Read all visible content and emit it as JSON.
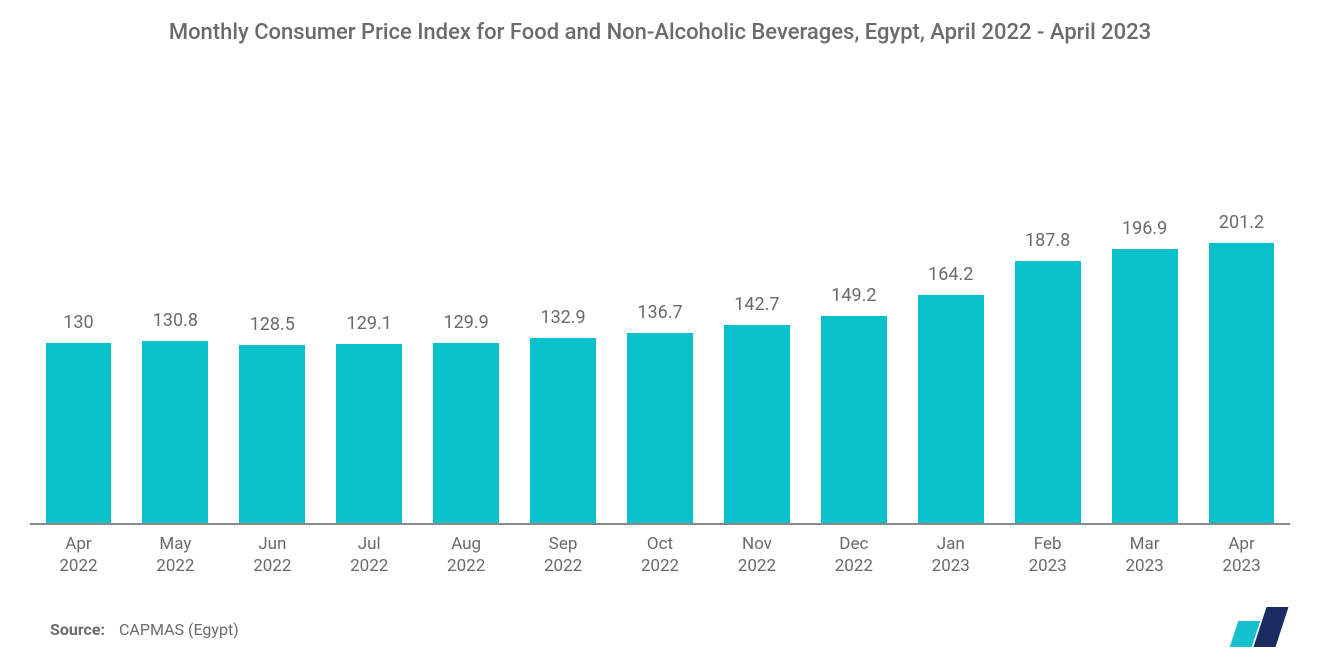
{
  "chart": {
    "type": "bar",
    "title": "Monthly Consumer Price Index for Food and Non-Alcoholic Beverages, Egypt, April 2022 - April 2023",
    "title_fontsize": 22,
    "title_color": "#6b6b6b",
    "categories": [
      "Apr\n2022",
      "May\n2022",
      "Jun\n2022",
      "Jul\n2022",
      "Aug\n2022",
      "Sep\n2022",
      "Oct\n2022",
      "Nov\n2022",
      "Dec\n2022",
      "Jan\n2023",
      "Feb\n2023",
      "Mar\n2023",
      "Apr\n2023"
    ],
    "values": [
      130,
      130.8,
      128.5,
      129.1,
      129.9,
      132.9,
      136.7,
      142.7,
      149.2,
      164.2,
      187.8,
      196.9,
      201.2
    ],
    "value_labels": [
      "130",
      "130.8",
      "128.5",
      "129.1",
      "129.9",
      "132.9",
      "136.7",
      "142.7",
      "149.2",
      "164.2",
      "187.8",
      "196.9",
      "201.2"
    ],
    "bar_color": "#09c1cb",
    "background_color": "#ffffff",
    "axis_color": "#888888",
    "text_color": "#6b6b6b",
    "value_label_fontsize": 18,
    "xlabel_fontsize": 17,
    "y_baseline": 0,
    "y_max": 260,
    "bar_width_ratio": 0.68,
    "source_label": "Source:",
    "source_text": "CAPMAS (Egypt)",
    "logo_colors": {
      "left": "#16c0cc",
      "right": "#1a2b5f"
    }
  }
}
